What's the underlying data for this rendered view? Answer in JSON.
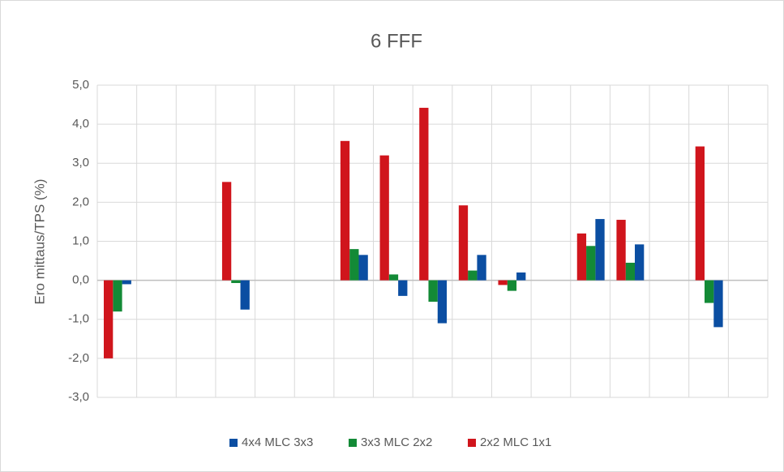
{
  "chart_data": {
    "type": "bar",
    "title": "6 FFF",
    "y_label": "Ero mittaus/TPS (%)",
    "categories": [
      null,
      null,
      null,
      null,
      null,
      null,
      null,
      null,
      null,
      null,
      null,
      null,
      null,
      null,
      null,
      null,
      null
    ],
    "series": [
      {
        "name": "4x4 MLC 3x3",
        "color": "#0b4ea2",
        "values": [
          -0.1,
          null,
          null,
          -0.75,
          null,
          null,
          0.65,
          -0.4,
          -1.1,
          0.65,
          0.2,
          null,
          1.57,
          0.92,
          null,
          -1.2,
          null
        ]
      },
      {
        "name": "3x3 MLC 2x2",
        "color": "#138a36",
        "values": [
          -0.8,
          null,
          null,
          -0.07,
          null,
          null,
          0.8,
          0.15,
          -0.55,
          0.25,
          -0.27,
          null,
          0.88,
          0.45,
          null,
          -0.58,
          null
        ]
      },
      {
        "name": "2x2 MLC 1x1",
        "color": "#d0151c",
        "values": [
          -2.0,
          null,
          null,
          2.52,
          null,
          null,
          3.57,
          3.2,
          4.42,
          1.92,
          -0.12,
          null,
          1.2,
          1.55,
          null,
          3.43,
          null
        ]
      }
    ],
    "ylim": [
      -3,
      5
    ],
    "yticks": [
      {
        "value": -3,
        "label": "-3,0"
      },
      {
        "value": -2,
        "label": "-2,0"
      },
      {
        "value": -1,
        "label": "-1,0"
      },
      {
        "value": 0,
        "label": "0,0"
      },
      {
        "value": 1,
        "label": "1,0"
      },
      {
        "value": 2,
        "label": "2,0"
      },
      {
        "value": 3,
        "label": "3,0"
      },
      {
        "value": 4,
        "label": "4,0"
      },
      {
        "value": 5,
        "label": "5,0"
      }
    ],
    "grid": true
  }
}
